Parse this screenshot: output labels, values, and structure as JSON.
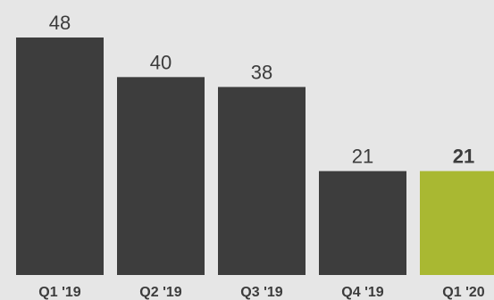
{
  "chart_data": {
    "type": "bar",
    "categories": [
      "Q1 '19",
      "Q2 '19",
      "Q3 '19",
      "Q4 '19",
      "Q1 '20"
    ],
    "values": [
      48,
      40,
      38,
      21,
      21
    ],
    "data_labels": [
      "48",
      "40",
      "38",
      "21",
      "21"
    ],
    "ylim": [
      0,
      48
    ],
    "grid": false,
    "highlight_index": 4,
    "colors": {
      "bar": "#3d3d3d",
      "highlight": "#a9b832",
      "background": "#e6e6e6",
      "text": "#3c3c3c"
    }
  }
}
